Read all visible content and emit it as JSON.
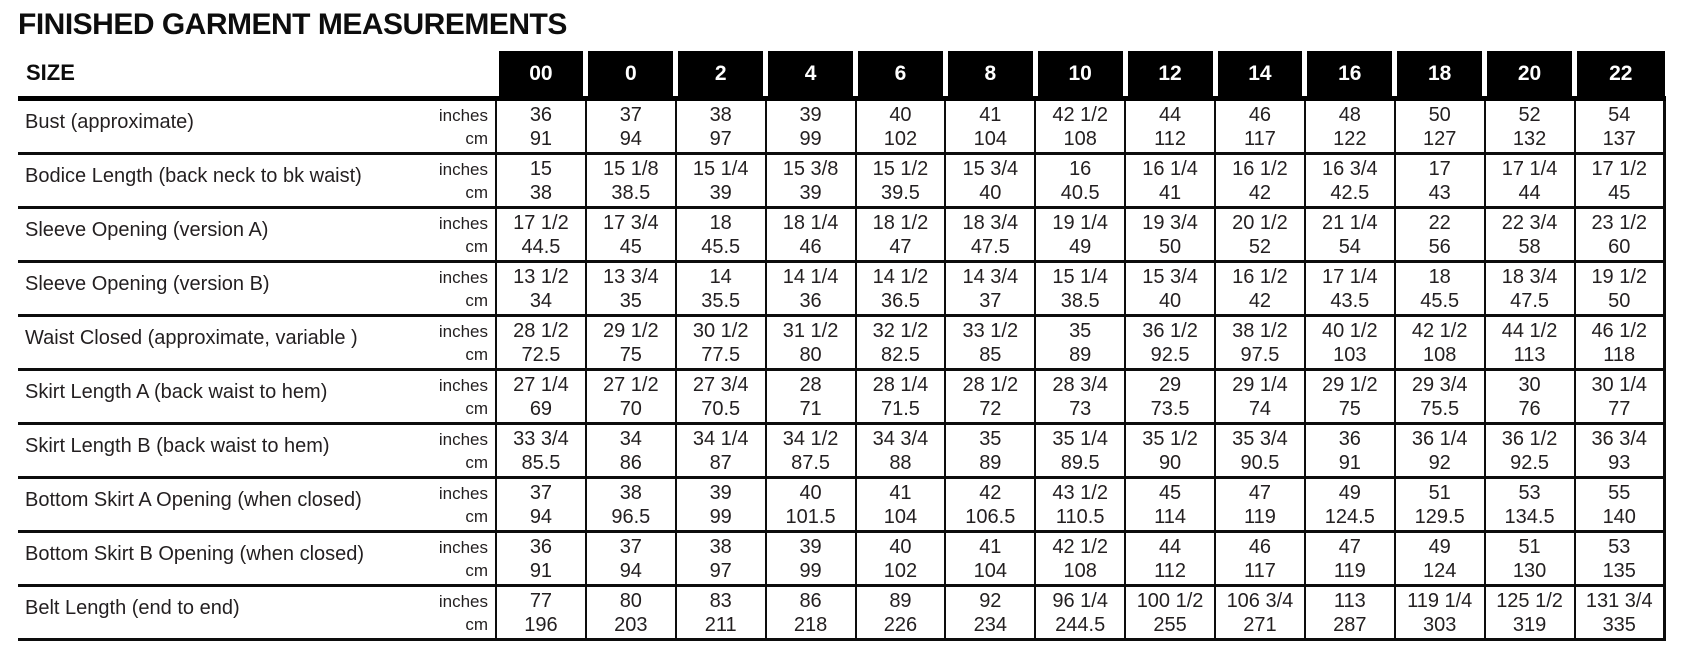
{
  "title": "FINISHED GARMENT MEASUREMENTS",
  "colors": {
    "header_bg": "#000000",
    "header_text": "#ffffff",
    "body_text": "#231f20",
    "rule": "#0d0d0d"
  },
  "table": {
    "size_header_label": "SIZE",
    "sizes": [
      "00",
      "0",
      "2",
      "4",
      "6",
      "8",
      "10",
      "12",
      "14",
      "16",
      "18",
      "20",
      "22"
    ],
    "unit_labels": {
      "inches": "inches",
      "cm": "cm"
    },
    "rows": [
      {
        "label": "Bust (approximate)",
        "inches": [
          "36",
          "37",
          "38",
          "39",
          "40",
          "41",
          "42 1/2",
          "44",
          "46",
          "48",
          "50",
          "52",
          "54"
        ],
        "cm": [
          "91",
          "94",
          "97",
          "99",
          "102",
          "104",
          "108",
          "112",
          "117",
          "122",
          "127",
          "132",
          "137"
        ]
      },
      {
        "label": "Bodice Length (back neck to bk waist)",
        "inches": [
          "15",
          "15 1/8",
          "15 1/4",
          "15 3/8",
          "15 1/2",
          "15 3/4",
          "16",
          "16 1/4",
          "16 1/2",
          "16 3/4",
          "17",
          "17 1/4",
          "17 1/2"
        ],
        "cm": [
          "38",
          "38.5",
          "39",
          "39",
          "39.5",
          "40",
          "40.5",
          "41",
          "42",
          "42.5",
          "43",
          "44",
          "45"
        ]
      },
      {
        "label": "Sleeve Opening (version A)",
        "inches": [
          "17 1/2",
          "17 3/4",
          "18",
          "18 1/4",
          "18 1/2",
          "18 3/4",
          "19 1/4",
          "19 3/4",
          "20 1/2",
          "21 1/4",
          "22",
          "22 3/4",
          "23 1/2"
        ],
        "cm": [
          "44.5",
          "45",
          "45.5",
          "46",
          "47",
          "47.5",
          "49",
          "50",
          "52",
          "54",
          "56",
          "58",
          "60"
        ]
      },
      {
        "label": "Sleeve Opening (version B)",
        "inches": [
          "13 1/2",
          "13 3/4",
          "14",
          "14 1/4",
          "14 1/2",
          "14 3/4",
          "15 1/4",
          "15 3/4",
          "16 1/2",
          "17 1/4",
          "18",
          "18 3/4",
          "19 1/2"
        ],
        "cm": [
          "34",
          "35",
          "35.5",
          "36",
          "36.5",
          "37",
          "38.5",
          "40",
          "42",
          "43.5",
          "45.5",
          "47.5",
          "50"
        ]
      },
      {
        "label": "Waist Closed (approximate, variable )",
        "inches": [
          "28 1/2",
          "29 1/2",
          "30 1/2",
          "31 1/2",
          "32 1/2",
          "33 1/2",
          "35",
          "36 1/2",
          "38 1/2",
          "40 1/2",
          "42 1/2",
          "44 1/2",
          "46 1/2"
        ],
        "cm": [
          "72.5",
          "75",
          "77.5",
          "80",
          "82.5",
          "85",
          "89",
          "92.5",
          "97.5",
          "103",
          "108",
          "113",
          "118"
        ]
      },
      {
        "label": "Skirt Length A (back waist to hem)",
        "inches": [
          "27 1/4",
          "27 1/2",
          "27 3/4",
          "28",
          "28 1/4",
          "28 1/2",
          "28 3/4",
          "29",
          "29 1/4",
          "29 1/2",
          "29 3/4",
          "30",
          "30 1/4"
        ],
        "cm": [
          "69",
          "70",
          "70.5",
          "71",
          "71.5",
          "72",
          "73",
          "73.5",
          "74",
          "75",
          "75.5",
          "76",
          "77"
        ]
      },
      {
        "label": "Skirt Length B (back waist to hem)",
        "inches": [
          "33 3/4",
          "34",
          "34 1/4",
          "34 1/2",
          "34 3/4",
          "35",
          "35 1/4",
          "35 1/2",
          "35 3/4",
          "36",
          "36 1/4",
          "36 1/2",
          "36 3/4"
        ],
        "cm": [
          "85.5",
          "86",
          "87",
          "87.5",
          "88",
          "89",
          "89.5",
          "90",
          "90.5",
          "91",
          "92",
          "92.5",
          "93"
        ]
      },
      {
        "label": "Bottom Skirt A Opening (when closed)",
        "inches": [
          "37",
          "38",
          "39",
          "40",
          "41",
          "42",
          "43 1/2",
          "45",
          "47",
          "49",
          "51",
          "53",
          "55"
        ],
        "cm": [
          "94",
          "96.5",
          "99",
          "101.5",
          "104",
          "106.5",
          "110.5",
          "114",
          "119",
          "124.5",
          "129.5",
          "134.5",
          "140"
        ]
      },
      {
        "label": "Bottom Skirt B Opening (when closed)",
        "inches": [
          "36",
          "37",
          "38",
          "39",
          "40",
          "41",
          "42 1/2",
          "44",
          "46",
          "47",
          "49",
          "51",
          "53"
        ],
        "cm": [
          "91",
          "94",
          "97",
          "99",
          "102",
          "104",
          "108",
          "112",
          "117",
          "119",
          "124",
          "130",
          "135"
        ]
      },
      {
        "label": "Belt Length  (end to end)",
        "inches": [
          "77",
          "80",
          "83",
          "86",
          "89",
          "92",
          "96 1/4",
          "100 1/2",
          "106 3/4",
          "113",
          "119 1/4",
          "125 1/2",
          "131 3/4"
        ],
        "cm": [
          "196",
          "203",
          "211",
          "218",
          "226",
          "234",
          "244.5",
          "255",
          "271",
          "287",
          "303",
          "319",
          "335"
        ]
      }
    ]
  }
}
